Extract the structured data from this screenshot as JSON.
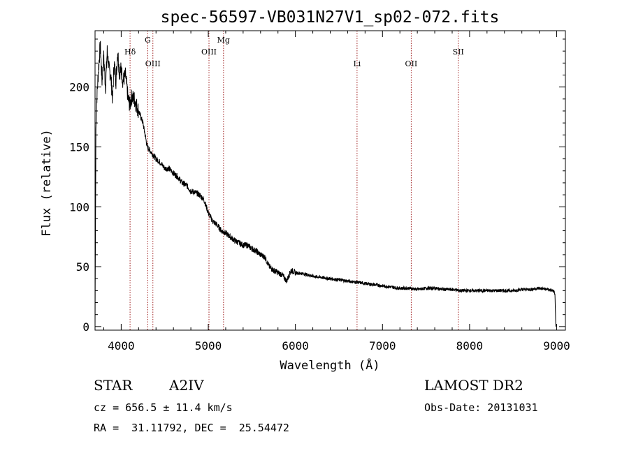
{
  "chart_data": {
    "type": "line",
    "title": "spec-56597-VB031N27V1_sp02-072.fits",
    "xlabel": "Wavelength (Å)",
    "ylabel": "Flux (relative)",
    "xlim": [
      3700,
      9100
    ],
    "ylim": [
      -3,
      247
    ],
    "xticks": [
      4000,
      5000,
      6000,
      7000,
      8000,
      9000
    ],
    "yticks": [
      0,
      50,
      100,
      150,
      200
    ],
    "grid": false,
    "series": [
      {
        "x": [
          3700,
          3710,
          3720,
          3740,
          3760,
          3780,
          3800,
          3820,
          3840,
          3860,
          3880,
          3900,
          3920,
          3940,
          3960,
          3980,
          4000,
          4020,
          4050,
          4080,
          4100,
          4120,
          4150,
          4200,
          4250,
          4300,
          4350,
          4400,
          4450,
          4500,
          4550,
          4600,
          4650,
          4700,
          4750,
          4800,
          4850,
          4900,
          4950,
          5000,
          5050,
          5100,
          5150,
          5200,
          5250,
          5300,
          5350,
          5400,
          5450,
          5500,
          5550,
          5600,
          5650,
          5700,
          5750,
          5800,
          5850,
          5900,
          5950,
          6000,
          6100,
          6200,
          6300,
          6400,
          6500,
          6600,
          6700,
          6800,
          6900,
          7000,
          7100,
          7200,
          7300,
          7400,
          7500,
          7600,
          7700,
          7800,
          7900,
          8000,
          8100,
          8200,
          8300,
          8400,
          8500,
          8600,
          8700,
          8800,
          8900,
          8950,
          8980,
          8990
        ],
        "y": [
          0,
          165,
          190,
          215,
          235,
          205,
          225,
          200,
          230,
          215,
          210,
          190,
          220,
          205,
          230,
          212,
          215,
          205,
          210,
          190,
          185,
          192,
          190,
          180,
          170,
          150,
          145,
          140,
          137,
          132,
          132,
          128,
          125,
          120,
          118,
          113,
          112,
          110,
          106,
          95,
          88,
          85,
          80,
          78,
          75,
          72,
          70,
          68,
          68,
          65,
          63,
          60,
          58,
          50,
          47,
          45,
          43,
          38,
          47,
          45,
          44,
          42,
          41,
          40,
          39,
          38,
          37,
          36,
          35,
          34,
          33,
          32,
          32,
          31,
          32,
          32,
          31,
          31,
          30,
          30,
          30,
          30,
          30,
          30,
          30,
          31,
          31,
          32,
          31,
          30,
          28,
          0
        ]
      }
    ],
    "line_markers": [
      {
        "label": "Hδ",
        "x": 4102,
        "tier": "high"
      },
      {
        "label": "G",
        "x": 4305,
        "tier": "top"
      },
      {
        "label": "OIII",
        "x": 4364,
        "tier": "low"
      },
      {
        "label": "OIII",
        "x": 5008,
        "tier": "high"
      },
      {
        "label": "Mg",
        "x": 5175,
        "tier": "top"
      },
      {
        "label": "Li",
        "x": 6708,
        "tier": "low"
      },
      {
        "label": "OII",
        "x": 7330,
        "tier": "low"
      },
      {
        "label": "SII",
        "x": 7870,
        "tier": "high"
      }
    ]
  },
  "info": {
    "class": "STAR",
    "subclass": "A2IV",
    "cz": "cz = 656.5 ± 11.4 km/s",
    "radec": "RA =  31.11792, DEC =  25.54472",
    "survey": "LAMOST DR2",
    "obsdate": "Obs-Date: 20131031"
  }
}
